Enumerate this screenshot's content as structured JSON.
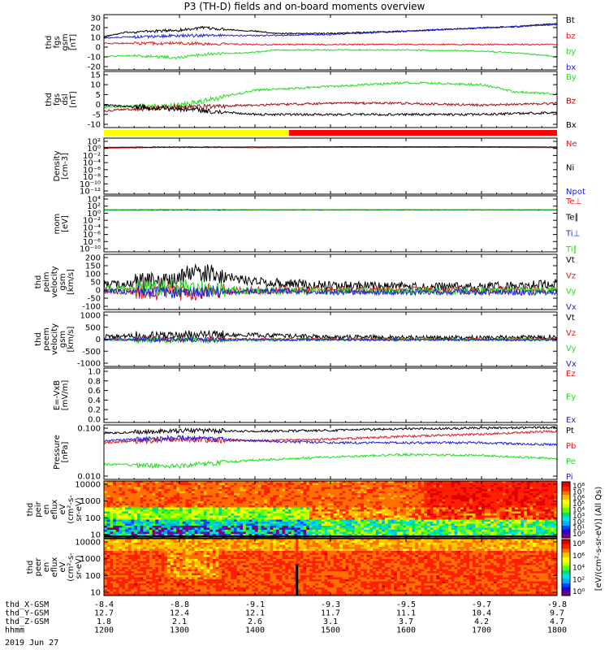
{
  "title": "P3 (TH-D) fields and on-board moments overview",
  "date_label": "2019 Jun 27",
  "colors": {
    "black": "#000000",
    "red": "#e41a1c",
    "green": "#1fe01f",
    "blue": "#1f1fd6",
    "dark_red": "#a01010",
    "yellow": "#ffff00",
    "bar_red": "#ff0000"
  },
  "chart_data": [
    {
      "type": "line",
      "panel": "fgs_gsm",
      "ylabel": [
        "thd",
        "fgs",
        "gsm",
        "[nT]"
      ],
      "ylim": [
        -20,
        30
      ],
      "yticks": [
        "30",
        "20",
        "10",
        "0",
        "-10",
        "-20"
      ],
      "legend": [
        {
          "label": "Bt",
          "color": "black"
        },
        {
          "label": "bz",
          "color": "red"
        },
        {
          "label": "by",
          "color": "green"
        },
        {
          "label": "bx",
          "color": "blue"
        }
      ],
      "series": [
        {
          "name": "Bt",
          "color": "black",
          "x": [
            1200,
            1230,
            1300,
            1330,
            1400,
            1430,
            1500,
            1600,
            1700,
            1745,
            1800
          ],
          "y": [
            10,
            14,
            16,
            18,
            15,
            13,
            13,
            15,
            18,
            19,
            22
          ]
        },
        {
          "name": "bz",
          "color": "red",
          "x": [
            1200,
            1300,
            1400,
            1500,
            1600,
            1700,
            1800
          ],
          "y": [
            4,
            4,
            3,
            3,
            3,
            3,
            3
          ]
        },
        {
          "name": "by",
          "color": "green",
          "x": [
            1200,
            1230,
            1300,
            1330,
            1400,
            1430,
            1500,
            1600,
            1700,
            1750,
            1800
          ],
          "y": [
            -8,
            -7,
            -9,
            -6,
            -4,
            -2,
            -2,
            -2,
            -3,
            -5,
            -8
          ]
        },
        {
          "name": "bx",
          "color": "blue",
          "x": [
            1200,
            1300,
            1400,
            1500,
            1600,
            1700,
            1800
          ],
          "y": [
            9,
            11,
            11,
            12,
            15,
            18,
            21
          ]
        }
      ]
    },
    {
      "type": "line",
      "panel": "fgs_dsl",
      "ylabel": [
        "thd",
        "fgs",
        "dsl",
        "[nT]"
      ],
      "ylim": [
        -15,
        15
      ],
      "yticks": [
        "15",
        "10",
        "5",
        "0",
        "-5",
        "-10"
      ],
      "legend": [
        {
          "label": "By",
          "color": "green"
        },
        {
          "label": "Bz",
          "color": "dark_red"
        },
        {
          "label": "Bx",
          "color": "black"
        }
      ],
      "series": [
        {
          "name": "By",
          "color": "green",
          "x": [
            1200,
            1300,
            1330,
            1400,
            1500,
            1600,
            1700,
            1745,
            1800
          ],
          "y": [
            -4,
            -3,
            -1,
            5,
            7,
            9,
            8,
            4,
            3
          ]
        },
        {
          "name": "Bz",
          "color": "dark_red",
          "x": [
            1200,
            1300,
            1400,
            1500,
            1600,
            1700,
            1800
          ],
          "y": [
            -6,
            -4,
            -3,
            -2,
            -2,
            -3,
            -2
          ]
        },
        {
          "name": "Bx",
          "color": "black",
          "x": [
            1200,
            1300,
            1400,
            1500,
            1600,
            1700,
            1800
          ],
          "y": [
            -3,
            -5,
            -8,
            -8,
            -8,
            -8,
            -7
          ]
        }
      ]
    },
    {
      "type": "bar",
      "panel": "mode_bar",
      "segments": [
        {
          "from": 1200,
          "to": 1445,
          "color": "yellow"
        },
        {
          "from": 1445,
          "to": 1800,
          "color": "bar_red"
        }
      ]
    },
    {
      "type": "line",
      "panel": "density",
      "ylabel": [
        "Density",
        "[cm-3]"
      ],
      "scale": "log",
      "ylim": [
        -12,
        2
      ],
      "yticks": [
        "10²",
        "10⁰",
        "10⁻²",
        "10⁻⁴",
        "10⁻⁶",
        "10⁻⁸",
        "10⁻¹⁰",
        "10⁻¹²"
      ],
      "legend": [
        {
          "label": "Ne",
          "color": "red"
        },
        {
          "label": "Ni",
          "color": "black"
        },
        {
          "label": "Npot",
          "color": "blue"
        }
      ],
      "series": [
        {
          "name": "Ne",
          "color": "red",
          "x": [
            1200,
            1300,
            1400,
            1500,
            1600,
            1700,
            1800
          ],
          "y": [
            0.3,
            0.5,
            0.4,
            0.5,
            0.5,
            0.5,
            0.4
          ]
        },
        {
          "name": "Ni",
          "color": "black",
          "x": [
            1200,
            1300,
            1400,
            1500,
            1600,
            1700,
            1800
          ],
          "y": [
            0.5,
            0.6,
            0.6,
            0.7,
            0.7,
            0.7,
            0.6
          ]
        }
      ]
    },
    {
      "type": "line",
      "panel": "temperature",
      "ylabel": [
        "mom",
        "[eV]"
      ],
      "scale": "log",
      "ylim": [
        -10,
        4
      ],
      "yticks": [
        "10⁴",
        "10²",
        "10⁰",
        "10⁻²",
        "10⁻⁴",
        "10⁻⁶",
        "10⁻⁸",
        "10⁻¹⁰"
      ],
      "legend": [
        {
          "label": "Te⊥",
          "color": "red"
        },
        {
          "label": "Te∥",
          "color": "black"
        },
        {
          "label": "Ti⊥",
          "color": "blue"
        },
        {
          "label": "Ti∥",
          "color": "green"
        }
      ],
      "series": [
        {
          "name": "Te⊥",
          "color": "red",
          "x": [
            1200,
            1300,
            1400,
            1500,
            1600,
            1700,
            1800
          ],
          "y": [
            2.6,
            2.7,
            2.7,
            2.8,
            2.8,
            2.8,
            2.7
          ]
        },
        {
          "name": "Te∥",
          "color": "black",
          "x": [
            1200,
            1300,
            1400,
            1500,
            1600,
            1700,
            1800
          ],
          "y": [
            2.8,
            3.0,
            3.0,
            3.0,
            3.0,
            3.0,
            2.9
          ]
        },
        {
          "name": "Ti⊥",
          "color": "blue",
          "x": [
            1200,
            1300,
            1400,
            1500,
            1600,
            1700,
            1800
          ],
          "y": [
            3.3,
            3.4,
            3.5,
            3.5,
            3.5,
            3.5,
            3.4
          ]
        },
        {
          "name": "Ti∥",
          "color": "green",
          "x": [
            1200,
            1300,
            1400,
            1500,
            1600,
            1700,
            1800
          ],
          "y": [
            3.2,
            3.3,
            3.4,
            3.5,
            3.4,
            3.4,
            3.3
          ]
        }
      ]
    },
    {
      "type": "line",
      "panel": "peim_velocity",
      "ylabel": [
        "thd",
        "peim",
        "velocity",
        "gsm",
        "[km/s]"
      ],
      "ylim": [
        -100,
        200
      ],
      "yticks": [
        "200",
        "150",
        "100",
        "50",
        "0",
        "-50",
        "-100"
      ],
      "legend": [
        {
          "label": "Vt",
          "color": "black"
        },
        {
          "label": "Vz",
          "color": "red"
        },
        {
          "label": "Vy",
          "color": "green"
        },
        {
          "label": "Vx",
          "color": "blue"
        }
      ],
      "series": [
        {
          "name": "Vt",
          "color": "black",
          "noise": 25,
          "x": [
            1200,
            1300,
            1320,
            1400,
            1500,
            1600,
            1700,
            1800
          ],
          "y": [
            30,
            60,
            110,
            50,
            30,
            25,
            25,
            40
          ]
        },
        {
          "name": "Vz",
          "color": "red",
          "noise": 20,
          "x": [
            1200,
            1300,
            1400,
            1500,
            1600,
            1700,
            1800
          ],
          "y": [
            5,
            -10,
            5,
            5,
            5,
            5,
            5
          ]
        },
        {
          "name": "Vy",
          "color": "green",
          "noise": 20,
          "x": [
            1200,
            1300,
            1400,
            1500,
            1600,
            1700,
            1800
          ],
          "y": [
            10,
            20,
            0,
            0,
            0,
            0,
            5
          ]
        },
        {
          "name": "Vx",
          "color": "blue",
          "noise": 15,
          "x": [
            1200,
            1300,
            1400,
            1500,
            1600,
            1700,
            1800
          ],
          "y": [
            0,
            -10,
            0,
            -5,
            -5,
            -5,
            -10
          ]
        }
      ]
    },
    {
      "type": "line",
      "panel": "peem_velocity",
      "ylabel": [
        "thd",
        "peem",
        "velocity",
        "gsm",
        "[km/s]"
      ],
      "ylim": [
        -1000,
        1000
      ],
      "yticks": [
        "1000",
        "500",
        "0",
        "-500",
        "-1000"
      ],
      "legend": [
        {
          "label": "Vt",
          "color": "black"
        },
        {
          "label": "Vz",
          "color": "red"
        },
        {
          "label": "Vy",
          "color": "green"
        },
        {
          "label": "Vx",
          "color": "blue"
        }
      ],
      "series": [
        {
          "name": "Vt",
          "color": "black",
          "noise": 80,
          "x": [
            1200,
            1300,
            1400,
            1500,
            1600,
            1700,
            1800
          ],
          "y": [
            100,
            150,
            150,
            80,
            60,
            60,
            80
          ]
        },
        {
          "name": "Vz",
          "color": "red",
          "noise": 40,
          "x": [
            1200,
            1300,
            1400,
            1500,
            1600,
            1700,
            1800
          ],
          "y": [
            0,
            0,
            0,
            0,
            0,
            0,
            0
          ]
        },
        {
          "name": "Vy",
          "color": "green",
          "noise": 50,
          "x": [
            1200,
            1300,
            1400,
            1500,
            1600,
            1700,
            1800
          ],
          "y": [
            -20,
            -40,
            -30,
            -20,
            -20,
            -20,
            -20
          ]
        },
        {
          "name": "Vx",
          "color": "blue",
          "noise": 40,
          "x": [
            1200,
            1300,
            1400,
            1500,
            1600,
            1700,
            1800
          ],
          "y": [
            -10,
            -20,
            -20,
            -20,
            -20,
            -20,
            -30
          ]
        }
      ]
    },
    {
      "type": "line",
      "panel": "e_field",
      "ylabel": [
        "E=-VxB",
        "[mV/m]"
      ],
      "ylim": [
        0,
        1
      ],
      "yticks": [
        "1.0",
        "0.8",
        "0.6",
        "0.4",
        "0.2",
        "0.0"
      ],
      "legend": [
        {
          "label": "Ez",
          "color": "red"
        },
        {
          "label": "Ey",
          "color": "green"
        },
        {
          "label": "Ex",
          "color": "blue"
        }
      ],
      "series": []
    },
    {
      "type": "line",
      "panel": "pressure",
      "ylabel": [
        "Pressure",
        "[nPa]"
      ],
      "scale": "log",
      "ylim": [
        -2.3,
        -0.6
      ],
      "yticks": [
        "0.100",
        "0.010"
      ],
      "legend": [
        {
          "label": "Pt",
          "color": "black"
        },
        {
          "label": "Pb",
          "color": "red"
        },
        {
          "label": "Pe",
          "color": "green"
        },
        {
          "label": "Pi",
          "color": "blue"
        }
      ],
      "series": [
        {
          "name": "Pt",
          "color": "black",
          "x": [
            1200,
            1300,
            1400,
            1500,
            1600,
            1700,
            1800
          ],
          "y": [
            0.14,
            0.17,
            0.16,
            0.17,
            0.19,
            0.2,
            0.21
          ]
        },
        {
          "name": "Pb",
          "color": "red",
          "x": [
            1200,
            1300,
            1400,
            1500,
            1600,
            1700,
            1800
          ],
          "y": [
            0.07,
            0.09,
            0.08,
            0.09,
            0.11,
            0.13,
            0.16
          ]
        },
        {
          "name": "Pi",
          "color": "blue",
          "x": [
            1200,
            1300,
            1400,
            1500,
            1600,
            1700,
            1800
          ],
          "y": [
            0.08,
            0.1,
            0.08,
            0.07,
            0.07,
            0.07,
            0.06
          ]
        },
        {
          "name": "Pe",
          "color": "green",
          "x": [
            1200,
            1300,
            1400,
            1500,
            1600,
            1700,
            1800
          ],
          "y": [
            0.015,
            0.013,
            0.02,
            0.025,
            0.03,
            0.028,
            0.022
          ]
        }
      ]
    },
    {
      "type": "heatmap",
      "panel": "peir_spectrogram",
      "ylabel": [
        "thd",
        "peir",
        "en",
        "eflux",
        "eV",
        "(cm²-s-",
        "sr-eV)"
      ],
      "ylim": [
        5,
        20000
      ],
      "yticks": [
        "10000",
        "1000",
        "100",
        "10"
      ]
    },
    {
      "type": "heatmap",
      "panel": "peer_spectrogram",
      "ylabel": [
        "thd",
        "peer",
        "en",
        "eflux",
        "eV",
        "(cm²-s-",
        "sr-eV)"
      ],
      "ylim": [
        5,
        20000
      ],
      "yticks": [
        "10000",
        "1000",
        "100",
        "10"
      ]
    }
  ],
  "colorbar": {
    "label": "[eV/(cm²-s-sr-eV)] (All Qs)",
    "ticks": [
      "10⁸",
      "10⁷",
      "10⁶",
      "10⁵",
      "10⁴",
      "10³",
      "10²",
      "10¹",
      "10⁰"
    ]
  },
  "colorbar2": {
    "ticks": [
      "10⁸",
      "10⁶",
      "10⁴",
      "10²",
      "10⁰"
    ]
  },
  "x_axis": {
    "row_labels": [
      "thd_X-GSM",
      "thd_Y-GSM",
      "thd_Z-GSM",
      "hhmm"
    ],
    "columns": [
      {
        "values": [
          "-8.4",
          "12.7",
          "1.8",
          "1200"
        ]
      },
      {
        "values": [
          "-8.8",
          "12.4",
          "2.1",
          "1300"
        ]
      },
      {
        "values": [
          "-9.1",
          "12.1",
          "2.6",
          "1400"
        ]
      },
      {
        "values": [
          "-9.3",
          "11.7",
          "3.1",
          "1500"
        ]
      },
      {
        "values": [
          "-9.5",
          "11.1",
          "3.7",
          "1600"
        ]
      },
      {
        "values": [
          "-9.7",
          "10.4",
          "4.2",
          "1700"
        ]
      },
      {
        "values": [
          "-9.8",
          "9.7",
          "4.7",
          "1800"
        ]
      }
    ]
  }
}
